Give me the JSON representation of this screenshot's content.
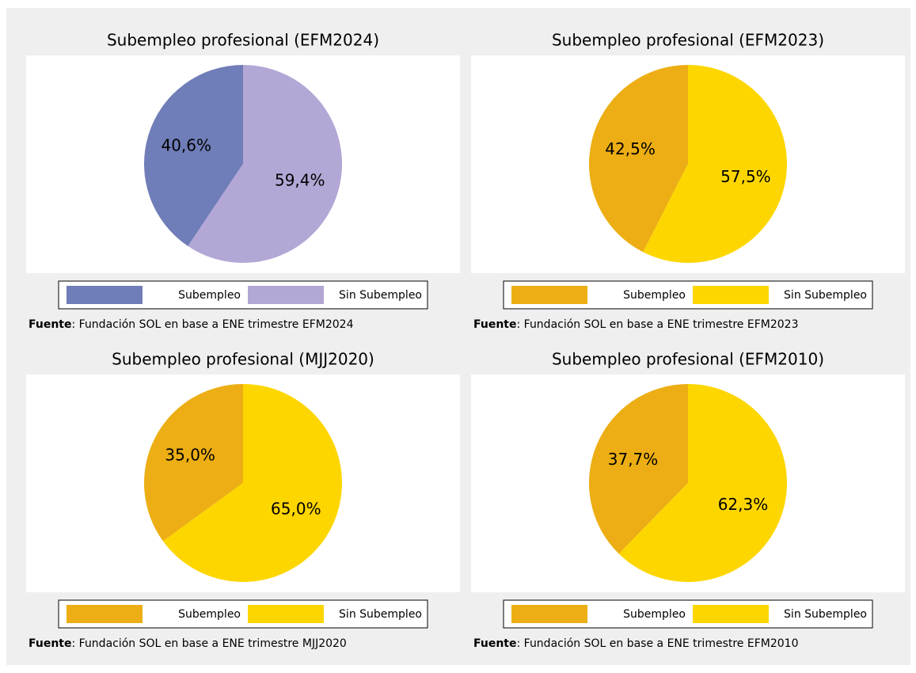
{
  "chart_data": [
    {
      "type": "pie",
      "title": "Subempleo profesional (EFM2024)",
      "categories": [
        "Subempleo",
        "Sin Subempleo"
      ],
      "values": [
        40.6,
        59.4
      ],
      "value_labels": [
        "40,6%",
        "59,4%"
      ],
      "colors": [
        "#6f7db8",
        "#b3a7d6"
      ],
      "source_label": "Fuente",
      "source_text": ": Fundación SOL en base a ENE trimestre EFM2024"
    },
    {
      "type": "pie",
      "title": "Subempleo profesional (EFM2023)",
      "categories": [
        "Subempleo",
        "Sin Subempleo"
      ],
      "values": [
        42.5,
        57.5
      ],
      "value_labels": [
        "42,5%",
        "57,5%"
      ],
      "colors": [
        "#ecae14",
        "#fdd600"
      ],
      "source_label": "Fuente",
      "source_text": ": Fundación SOL en base a ENE trimestre EFM2023"
    },
    {
      "type": "pie",
      "title": "Subempleo profesional (MJJ2020)",
      "categories": [
        "Subempleo",
        "Sin Subempleo"
      ],
      "values": [
        35.0,
        65.0
      ],
      "value_labels": [
        "35,0%",
        "65,0%"
      ],
      "colors": [
        "#ecae14",
        "#fdd600"
      ],
      "source_label": "Fuente",
      "source_text": ": Fundación SOL en base a ENE trimestre MJJ2020"
    },
    {
      "type": "pie",
      "title": "Subempleo profesional (EFM2010)",
      "categories": [
        "Subempleo",
        "Sin Subempleo"
      ],
      "values": [
        37.7,
        62.3
      ],
      "value_labels": [
        "37,7%",
        "62,3%"
      ],
      "colors": [
        "#ecae14",
        "#fdd600"
      ],
      "source_label": "Fuente",
      "source_text": ": Fundación SOL en base a ENE trimestre EFM2010"
    }
  ]
}
